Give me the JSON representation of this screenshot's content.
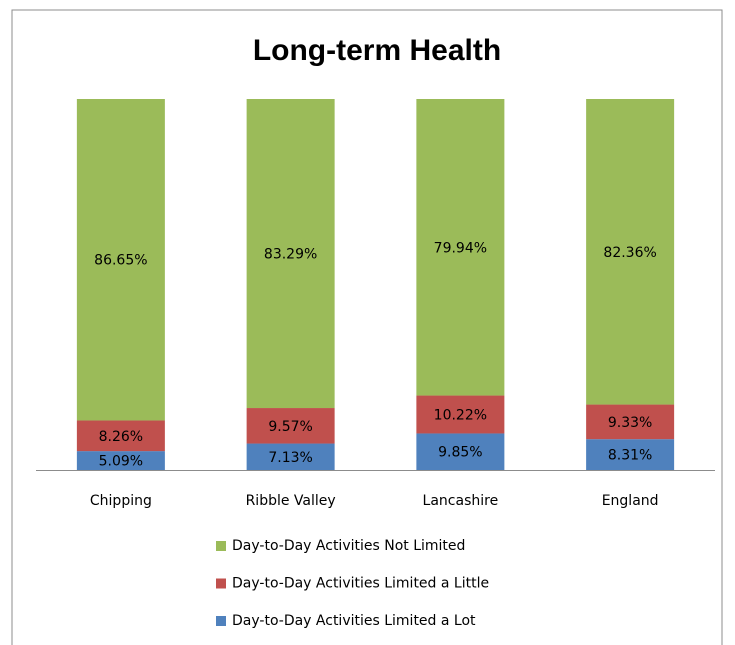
{
  "chart_data": {
    "type": "stacked_percent_bar",
    "title": "Long-term Health",
    "categories": [
      "Chipping",
      "Ribble Valley",
      "Lancashire",
      "England"
    ],
    "series": [
      {
        "name": "Day-to-Day Activities Limited a Lot",
        "color": "#4f81bd",
        "values": [
          5.09,
          7.13,
          9.85,
          8.31
        ],
        "value_labels": [
          "5.09%",
          "7.13%",
          "9.85%",
          "8.31%"
        ]
      },
      {
        "name": "Day-to-Day Activities Limited a Little",
        "color": "#c0504d",
        "values": [
          8.26,
          9.57,
          10.22,
          9.33
        ],
        "value_labels": [
          "8.26%",
          "9.57%",
          "10.22%",
          "9.33%"
        ]
      },
      {
        "name": "Day-to-Day Activities Not Limited",
        "color": "#9bbb59",
        "values": [
          86.65,
          83.29,
          79.94,
          82.36
        ],
        "value_labels": [
          "86.65%",
          "83.29%",
          "79.94%",
          "82.36%"
        ]
      }
    ],
    "legend_position": "bottom"
  }
}
